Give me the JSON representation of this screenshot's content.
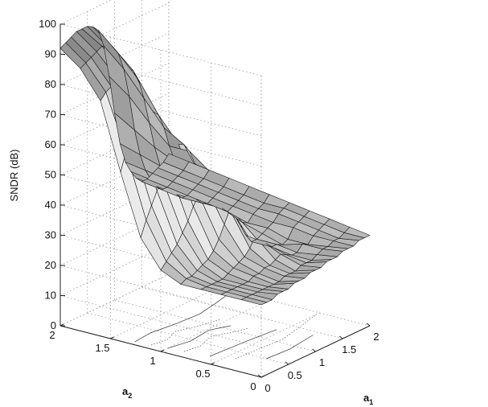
{
  "chart_data": {
    "type": "surface",
    "title": "",
    "zlabel": "SNDR (dB)",
    "xlabel": "a1",
    "ylabel": "a2",
    "xlabel_main": "a",
    "xlabel_sub": "1",
    "ylabel_main": "a",
    "ylabel_sub": "2",
    "xlim": [
      0,
      2
    ],
    "ylim": [
      0,
      2
    ],
    "zlim": [
      0,
      100
    ],
    "x_ticks": [
      "0",
      "0.5",
      "1",
      "1.5",
      "2"
    ],
    "y_ticks": [
      "0",
      "0.5",
      "1",
      "1.5",
      "2"
    ],
    "z_ticks": [
      "0",
      "10",
      "20",
      "30",
      "40",
      "50",
      "60",
      "70",
      "80",
      "90",
      "100"
    ],
    "grid": true,
    "contour_projection": true,
    "colormap": "gray",
    "a1_samples": [
      0.0,
      0.1,
      0.2,
      0.3,
      0.4,
      0.5,
      0.6,
      0.7,
      0.8,
      0.9,
      1.0,
      1.1,
      1.2,
      1.3,
      1.4,
      1.5,
      1.6,
      1.7,
      1.8,
      1.9,
      2.0
    ],
    "a2_samples": [
      0.0,
      0.2,
      0.4,
      0.6,
      0.8,
      1.0,
      1.2,
      1.4,
      1.6,
      1.8,
      2.0
    ],
    "z_rows": [
      [
        24,
        24,
        24,
        25,
        25,
        25,
        26,
        26,
        26,
        27,
        27,
        27,
        28,
        28,
        28,
        29,
        29,
        29,
        30,
        30,
        30
      ],
      [
        24,
        24,
        24,
        24,
        24,
        24,
        24,
        24,
        25,
        25,
        25,
        26,
        26,
        26,
        27,
        28,
        28,
        29,
        29,
        30,
        31
      ],
      [
        24,
        24,
        24,
        24,
        24,
        24,
        25,
        25,
        26,
        26,
        27,
        28,
        27,
        26,
        26,
        28,
        27,
        29,
        30,
        31,
        32
      ],
      [
        24,
        24,
        24,
        24,
        24,
        25,
        26,
        27,
        28,
        30,
        33,
        31,
        29,
        27,
        27,
        26,
        27,
        30,
        31,
        32,
        33
      ],
      [
        24,
        25,
        25,
        26,
        27,
        28,
        30,
        33,
        37,
        41,
        38,
        34,
        30,
        27,
        27,
        28,
        29,
        30,
        32,
        33,
        34
      ],
      [
        27,
        29,
        31,
        33,
        36,
        39,
        43,
        46,
        49,
        52,
        50,
        45,
        40,
        36,
        33,
        30,
        29,
        31,
        32,
        33,
        35
      ],
      [
        36,
        41,
        45,
        49,
        52,
        56,
        59,
        61,
        60,
        57,
        52,
        48,
        44,
        40,
        36,
        33,
        31,
        32,
        33,
        34,
        36
      ],
      [
        56,
        62,
        65,
        68,
        70,
        71,
        71,
        69,
        64,
        57,
        51,
        46,
        42,
        38,
        35,
        33,
        32,
        33,
        34,
        35,
        37
      ],
      [
        78,
        80,
        81,
        83,
        84,
        84,
        83,
        79,
        72,
        63,
        54,
        47,
        42,
        38,
        35,
        33,
        33,
        34,
        35,
        36,
        38
      ],
      [
        87,
        88,
        89,
        90,
        91,
        90,
        89,
        86,
        80,
        70,
        58,
        49,
        43,
        39,
        36,
        34,
        34,
        35,
        36,
        37,
        39
      ],
      [
        92,
        93,
        94,
        95,
        95,
        95,
        94,
        92,
        86,
        75,
        62,
        51,
        44,
        40,
        37,
        35,
        35,
        36,
        37,
        38,
        40
      ]
    ]
  }
}
